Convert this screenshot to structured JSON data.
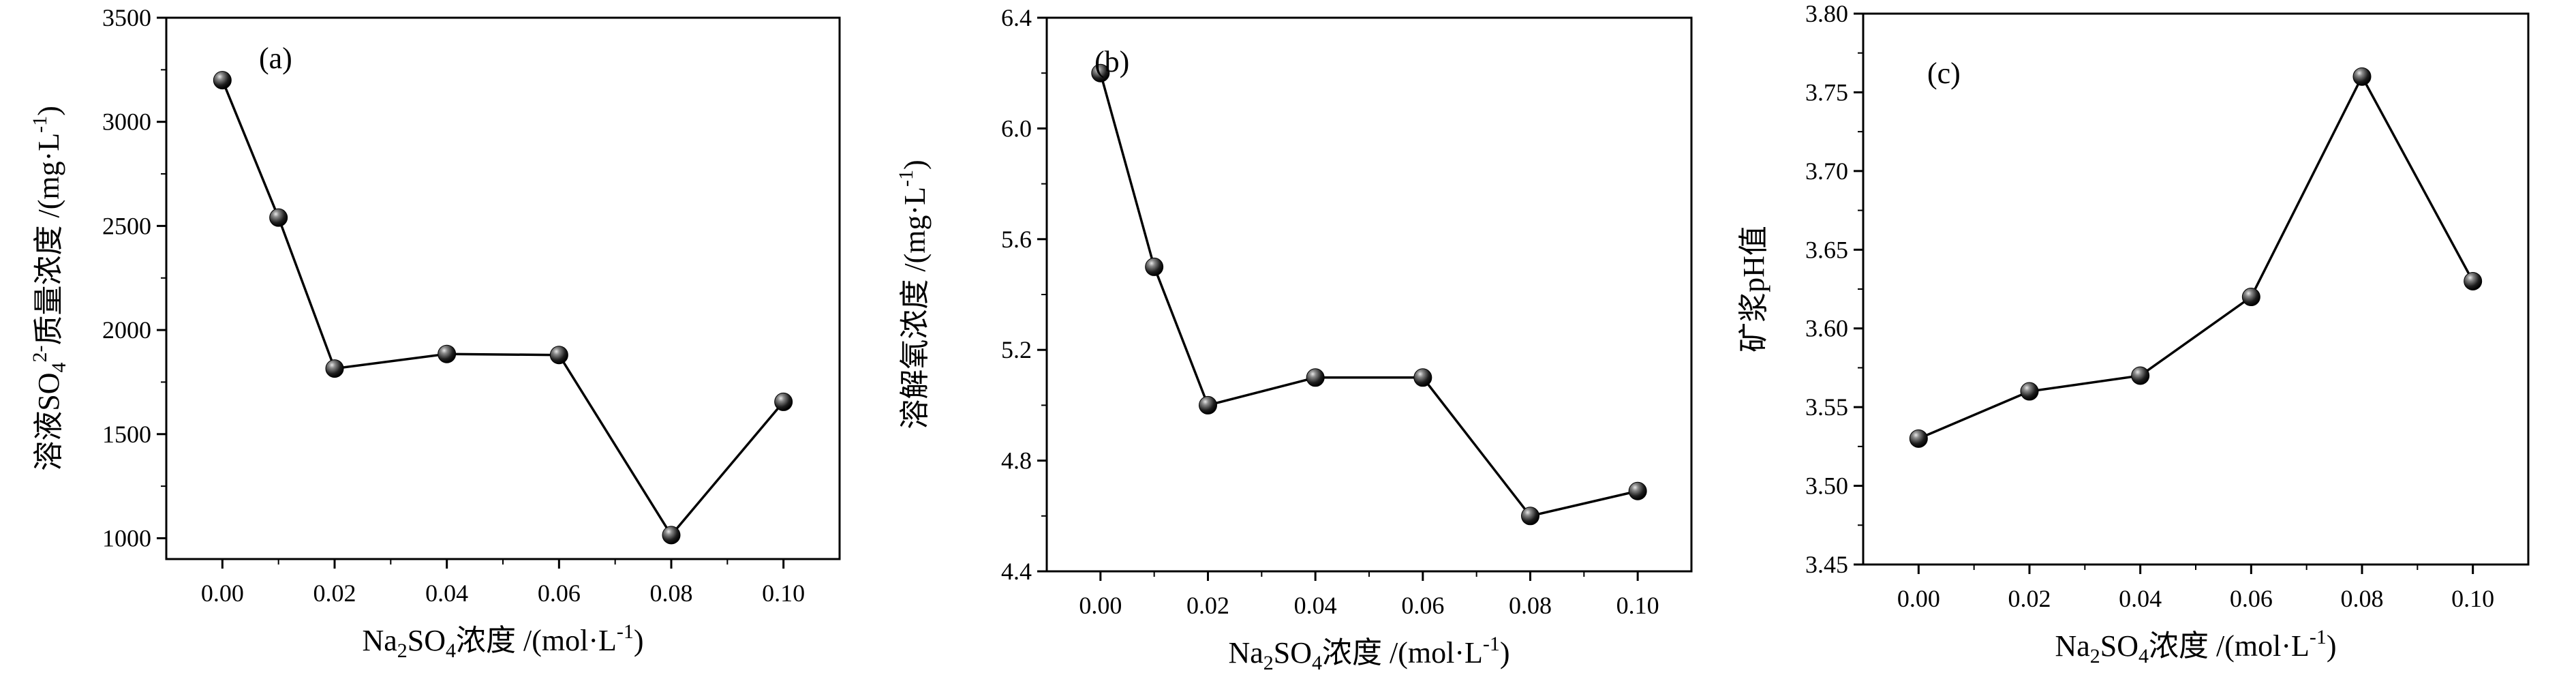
{
  "chart_data": [
    {
      "type": "line",
      "panel_label": "(a)",
      "xlabel_main": "Na",
      "xlabel_sub": "2",
      "xlabel_mid": "SO",
      "xlabel_sub2": "4",
      "xlabel_rest": "浓度 /(mol·L",
      "xlabel_sup": "-1",
      "xlabel_end": ")",
      "ylabel_parts": {
        "main": "溶液SO",
        "sub": "4",
        "sup": "2-",
        "mid": "质量浓度  /(mg·L",
        "sup2": "-1",
        "end": ")"
      },
      "x": [
        0.0,
        0.01,
        0.02,
        0.04,
        0.06,
        0.08,
        0.1
      ],
      "y": [
        3200,
        2540,
        1815,
        1885,
        1880,
        1015,
        1655
      ],
      "xlim": [
        -0.01,
        0.11
      ],
      "ylim": [
        900,
        3500
      ],
      "xticks": [
        "0.00",
        "0.02",
        "0.04",
        "0.06",
        "0.08",
        "0.10"
      ],
      "xtick_values": [
        0.0,
        0.02,
        0.04,
        0.06,
        0.08,
        0.1
      ],
      "yticks": [
        "1000",
        "1500",
        "2000",
        "2500",
        "3000",
        "3500"
      ],
      "ytick_values": [
        1000,
        1500,
        2000,
        2500,
        3000,
        3500
      ]
    },
    {
      "type": "line",
      "panel_label": "(b)",
      "xlabel_main": "Na",
      "xlabel_sub": "2",
      "xlabel_mid": "SO",
      "xlabel_sub2": "4",
      "xlabel_rest": "浓度 /(mol·L",
      "xlabel_sup": "-1",
      "xlabel_end": ")",
      "ylabel_parts": {
        "main": "溶解氧浓度 /(mg·L",
        "sup": "-1",
        "end": ")"
      },
      "x": [
        0.0,
        0.01,
        0.02,
        0.04,
        0.06,
        0.08,
        0.1
      ],
      "y": [
        6.2,
        5.5,
        5.0,
        5.1,
        5.1,
        4.6,
        4.69
      ],
      "xlim": [
        -0.01,
        0.11
      ],
      "ylim": [
        4.4,
        6.4
      ],
      "xticks": [
        "0.00",
        "0.02",
        "0.04",
        "0.06",
        "0.08",
        "0.10"
      ],
      "xtick_values": [
        0.0,
        0.02,
        0.04,
        0.06,
        0.08,
        0.1
      ],
      "yticks": [
        "4.4",
        "4.8",
        "5.2",
        "5.6",
        "6.0",
        "6.4"
      ],
      "ytick_values": [
        4.4,
        4.8,
        5.2,
        5.6,
        6.0,
        6.4
      ]
    },
    {
      "type": "line",
      "panel_label": "(c)",
      "xlabel_main": "Na",
      "xlabel_sub": "2",
      "xlabel_mid": "SO",
      "xlabel_sub2": "4",
      "xlabel_rest": "浓度 /(mol·L",
      "xlabel_sup": "-1",
      "xlabel_end": ")",
      "ylabel_parts": {
        "main": "矿浆pH值"
      },
      "x": [
        0.0,
        0.02,
        0.04,
        0.06,
        0.08,
        0.1
      ],
      "y": [
        3.53,
        3.56,
        3.57,
        3.62,
        3.76,
        3.63
      ],
      "xlim": [
        -0.01,
        0.11
      ],
      "ylim": [
        3.45,
        3.8
      ],
      "xticks": [
        "0.00",
        "0.02",
        "0.04",
        "0.06",
        "0.08",
        "0.10"
      ],
      "xtick_values": [
        0.0,
        0.02,
        0.04,
        0.06,
        0.08,
        0.1
      ],
      "yticks": [
        "3.45",
        "3.50",
        "3.55",
        "3.60",
        "3.65",
        "3.70",
        "3.75",
        "3.80"
      ],
      "ytick_values": [
        3.45,
        3.5,
        3.55,
        3.6,
        3.65,
        3.7,
        3.75,
        3.8
      ]
    }
  ]
}
